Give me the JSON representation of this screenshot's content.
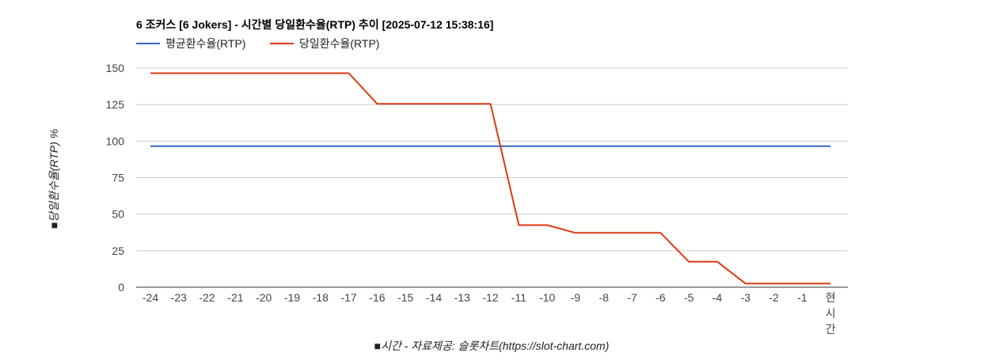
{
  "chart_data": {
    "type": "line",
    "title": "6 조커스 [6 Jokers] - 시간별 당일환수율(RTP) 추이 [2025-07-12 15:38:16]",
    "xlabel": "■시간 - 자료제공: 슬롯차트(https://slot-chart.com)",
    "ylabel": "■당일환수율(RTP) %",
    "legend_position": "top-left",
    "grid": true,
    "ylim": [
      0,
      150
    ],
    "yticks": [
      "0",
      "25",
      "50",
      "75",
      "100",
      "125",
      "150"
    ],
    "x": [
      "-24",
      "-23",
      "-22",
      "-21",
      "-20",
      "-19",
      "-18",
      "-17",
      "-16",
      "-15",
      "-14",
      "-13",
      "-12",
      "-11",
      "-10",
      "-9",
      "-8",
      "-7",
      "-6",
      "-5",
      "-4",
      "-3",
      "-2",
      "-1",
      "현시간"
    ],
    "series": [
      {
        "name": "평균환수율(RTP)",
        "color": "#3366cc",
        "values": [
          96.5,
          96.5,
          96.5,
          96.5,
          96.5,
          96.5,
          96.5,
          96.5,
          96.5,
          96.5,
          96.5,
          96.5,
          96.5,
          96.5,
          96.5,
          96.5,
          96.5,
          96.5,
          96.5,
          96.5,
          96.5,
          96.5,
          96.5,
          96.5,
          96.5
        ]
      },
      {
        "name": "당일환수율(RTP)",
        "color": "#dc3912",
        "values": [
          146.5,
          146.5,
          146.5,
          146.5,
          146.5,
          146.5,
          146.5,
          146.5,
          125.5,
          125.5,
          125.5,
          125.5,
          125.5,
          42.5,
          42.5,
          37.2,
          37.2,
          37.2,
          37.2,
          17.5,
          17.5,
          2.5,
          2.5,
          2.5,
          2.5
        ]
      }
    ]
  }
}
